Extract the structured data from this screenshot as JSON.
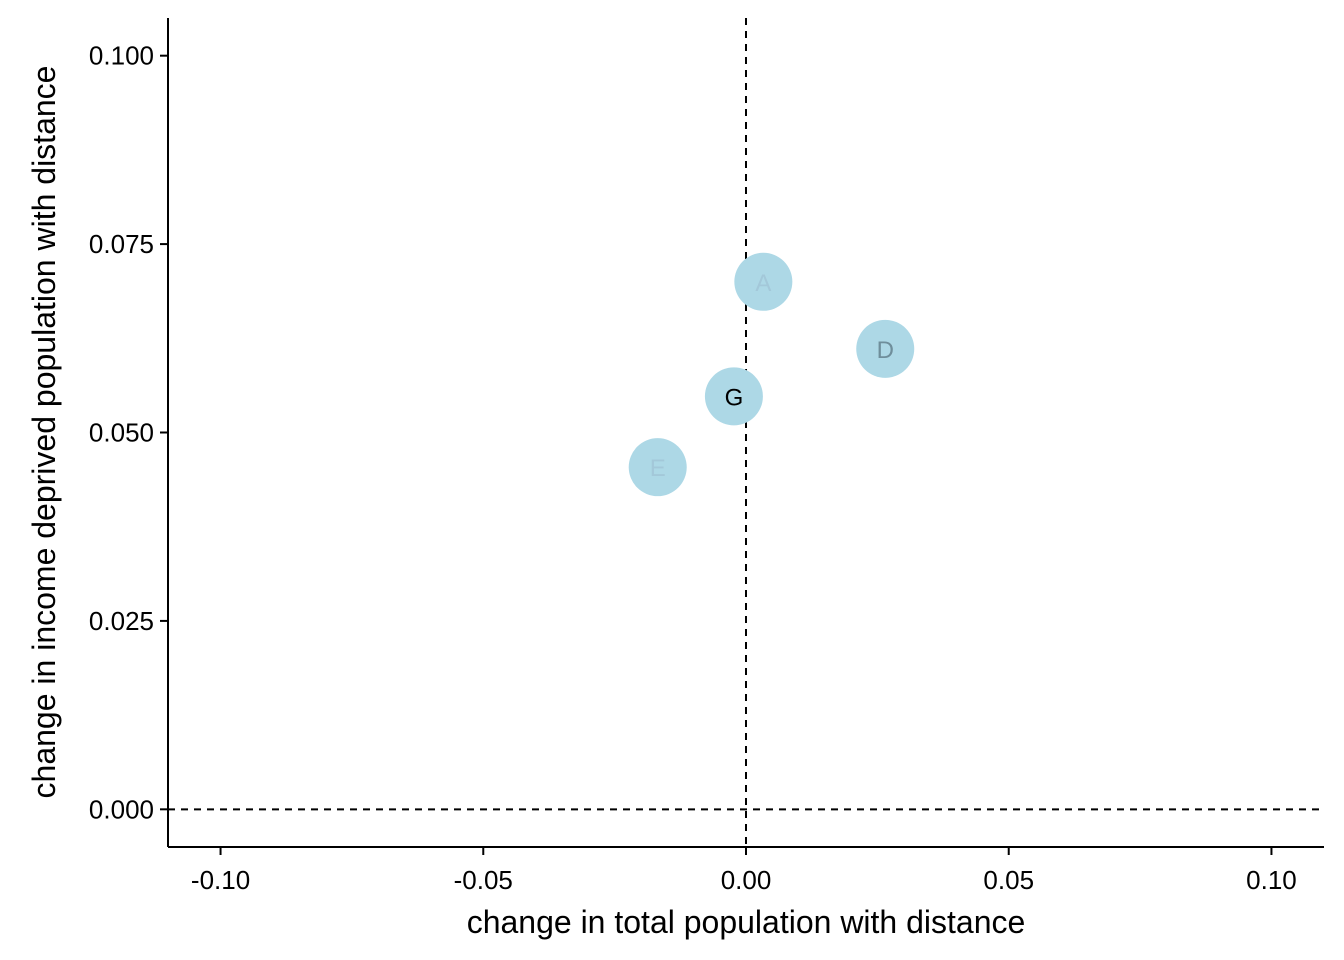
{
  "chart_data": {
    "type": "scatter",
    "title": "",
    "xlabel": "change in total population with distance",
    "ylabel": "change in income deprived population with distance",
    "xlim": [
      -0.11,
      0.11
    ],
    "ylim": [
      -0.005,
      0.105
    ],
    "x_ticks": [
      -0.1,
      -0.05,
      0.0,
      0.05,
      0.1
    ],
    "x_tick_labels": [
      "-0.10",
      "-0.05",
      "0.00",
      "0.05",
      "0.10"
    ],
    "y_ticks": [
      0.0,
      0.025,
      0.05,
      0.075,
      0.1
    ],
    "y_tick_labels": [
      "0.000",
      "0.025",
      "0.050",
      "0.075",
      "0.100"
    ],
    "reference_lines": {
      "x": 0,
      "y": 0,
      "style": "dashed"
    },
    "grid": false,
    "point_color": "#add8e6",
    "points": [
      {
        "label": "A",
        "x": 0.0033,
        "y": 0.07,
        "label_color": "#a3c8d9"
      },
      {
        "label": "D",
        "x": 0.0265,
        "y": 0.0611,
        "label_color": "#6f8e9b"
      },
      {
        "label": "G",
        "x": -0.0023,
        "y": 0.0548,
        "label_color": "#000000"
      },
      {
        "label": "E",
        "x": -0.0168,
        "y": 0.0454,
        "label_color": "#a3c8d9"
      }
    ]
  }
}
